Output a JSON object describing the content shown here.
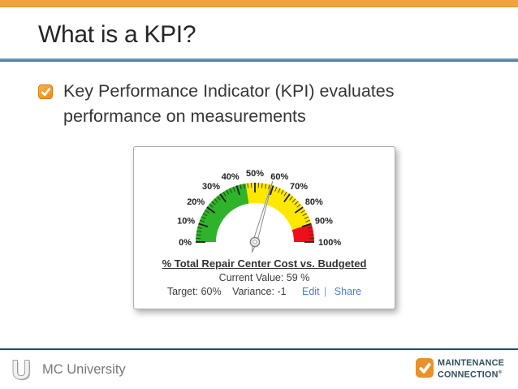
{
  "slide": {
    "title": "What is a KPI?",
    "bullet_lines": [
      "Key Performance Indicator (KPI) evaluates",
      "performance on measurements"
    ]
  },
  "gauge_widget": {
    "title": "% Total Repair Center Cost vs. Budgeted",
    "current_value_label": "Current Value: 59 %",
    "target_label": "Target: 60%",
    "variance_label": "Variance: -1",
    "edit_link": "Edit",
    "separator": "|",
    "share_link": "Share"
  },
  "chart_data": {
    "type": "gauge",
    "title": "% Total Repair Center Cost vs. Budgeted",
    "min": 0,
    "max": 100,
    "unit": "%",
    "value": 59,
    "target": 60,
    "variance": -1,
    "zones": [
      {
        "from": 0,
        "to": 45,
        "color": "#2fb32a",
        "label": "green"
      },
      {
        "from": 45,
        "to": 90,
        "color": "#ffe800",
        "label": "yellow"
      },
      {
        "from": 90,
        "to": 100,
        "color": "#ee0f1c",
        "label": "red"
      }
    ],
    "tick_labels": [
      "0%",
      "10%",
      "20%",
      "30%",
      "40%",
      "50%",
      "60%",
      "70%",
      "80%",
      "90%",
      "100%"
    ],
    "major_tick_step": 10,
    "minor_tick_step": 2,
    "sweep_degrees": 180
  },
  "footer": {
    "left_text": "MC University",
    "brand_line1": "MAINTENANCE",
    "brand_line2": "CONNECTION",
    "registered_mark": "®"
  },
  "colors": {
    "accent_orange": "#F1A33B",
    "rule_blue": "#5B87AE",
    "footer_teal": "#20505F",
    "link_blue": "#4D7BC9",
    "brand_orange": "#E8912D",
    "brand_slate": "#31505E",
    "title_text": "#262626",
    "body_text": "#363636"
  }
}
